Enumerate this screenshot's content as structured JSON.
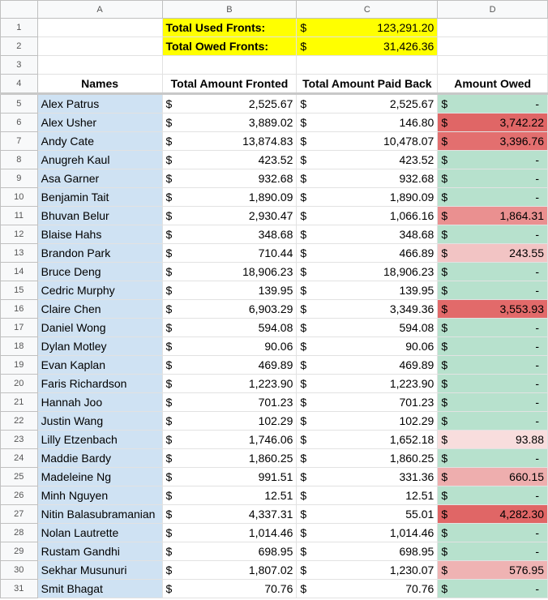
{
  "columns": [
    "A",
    "B",
    "C",
    "D"
  ],
  "summary": [
    {
      "row": "1",
      "label": "Total Used Fronts:",
      "currency": "$",
      "value": "123,291.20"
    },
    {
      "row": "2",
      "label": "Total Owed Fronts:",
      "currency": "$",
      "value": "31,426.36"
    }
  ],
  "blank_row": "3",
  "header_row": {
    "row": "4",
    "names": "Names",
    "fronted": "Total Amount Fronted",
    "paid": "Total Amount Paid Back",
    "owed": "Amount Owed"
  },
  "currency_symbol": "$",
  "colors": {
    "name_bg": "#cfe2f3",
    "owed_zero_bg": "#b7e1cd",
    "highlight_yellow": "#ffff00"
  },
  "rows": [
    {
      "row": "5",
      "name": "Alex Patrus",
      "fronted": "2,525.67",
      "paid": "2,525.67",
      "owed": "-",
      "owed_bg": "#b7e1cd"
    },
    {
      "row": "6",
      "name": "Alex Usher",
      "fronted": "3,889.02",
      "paid": "146.80",
      "owed": "3,742.22",
      "owed_bg": "#e06666"
    },
    {
      "row": "7",
      "name": "Andy Cate",
      "fronted": "13,874.83",
      "paid": "10,478.07",
      "owed": "3,396.76",
      "owed_bg": "#e36f6f"
    },
    {
      "row": "8",
      "name": "Anugreh Kaul",
      "fronted": "423.52",
      "paid": "423.52",
      "owed": "-",
      "owed_bg": "#b7e1cd"
    },
    {
      "row": "9",
      "name": "Asa Garner",
      "fronted": "932.68",
      "paid": "932.68",
      "owed": "-",
      "owed_bg": "#b7e1cd"
    },
    {
      "row": "10",
      "name": "Benjamin Tait",
      "fronted": "1,890.09",
      "paid": "1,890.09",
      "owed": "-",
      "owed_bg": "#b7e1cd"
    },
    {
      "row": "11",
      "name": "Bhuvan Belur",
      "fronted": "2,930.47",
      "paid": "1,066.16",
      "owed": "1,864.31",
      "owed_bg": "#ea9090"
    },
    {
      "row": "12",
      "name": "Blaise Hahs",
      "fronted": "348.68",
      "paid": "348.68",
      "owed": "-",
      "owed_bg": "#b7e1cd"
    },
    {
      "row": "13",
      "name": "Brandon Park",
      "fronted": "710.44",
      "paid": "466.89",
      "owed": "243.55",
      "owed_bg": "#f2c4c4"
    },
    {
      "row": "14",
      "name": "Bruce Deng",
      "fronted": "18,906.23",
      "paid": "18,906.23",
      "owed": "-",
      "owed_bg": "#b7e1cd"
    },
    {
      "row": "15",
      "name": "Cedric Murphy",
      "fronted": "139.95",
      "paid": "139.95",
      "owed": "-",
      "owed_bg": "#b7e1cd"
    },
    {
      "row": "16",
      "name": "Claire Chen",
      "fronted": "6,903.29",
      "paid": "3,349.36",
      "owed": "3,553.93",
      "owed_bg": "#e26a6a"
    },
    {
      "row": "17",
      "name": "Daniel Wong",
      "fronted": "594.08",
      "paid": "594.08",
      "owed": "-",
      "owed_bg": "#b7e1cd"
    },
    {
      "row": "18",
      "name": "Dylan Motley",
      "fronted": "90.06",
      "paid": "90.06",
      "owed": "-",
      "owed_bg": "#b7e1cd"
    },
    {
      "row": "19",
      "name": "Evan Kaplan",
      "fronted": "469.89",
      "paid": "469.89",
      "owed": "-",
      "owed_bg": "#b7e1cd"
    },
    {
      "row": "20",
      "name": "Faris Richardson",
      "fronted": "1,223.90",
      "paid": "1,223.90",
      "owed": "-",
      "owed_bg": "#b7e1cd"
    },
    {
      "row": "21",
      "name": "Hannah Joo",
      "fronted": "701.23",
      "paid": "701.23",
      "owed": "-",
      "owed_bg": "#b7e1cd"
    },
    {
      "row": "22",
      "name": "Justin Wang",
      "fronted": "102.29",
      "paid": "102.29",
      "owed": "-",
      "owed_bg": "#b7e1cd"
    },
    {
      "row": "23",
      "name": "Lilly Etzenbach",
      "fronted": "1,746.06",
      "paid": "1,652.18",
      "owed": "93.88",
      "owed_bg": "#f8dddd"
    },
    {
      "row": "24",
      "name": "Maddie Bardy",
      "fronted": "1,860.25",
      "paid": "1,860.25",
      "owed": "-",
      "owed_bg": "#b7e1cd"
    },
    {
      "row": "25",
      "name": "Madeleine Ng",
      "fronted": "991.51",
      "paid": "331.36",
      "owed": "660.15",
      "owed_bg": "#eeaeae"
    },
    {
      "row": "26",
      "name": "Minh Nguyen",
      "fronted": "12.51",
      "paid": "12.51",
      "owed": "-",
      "owed_bg": "#b7e1cd"
    },
    {
      "row": "27",
      "name": "Nitin Balasubramanian",
      "fronted": "4,337.31",
      "paid": "55.01",
      "owed": "4,282.30",
      "owed_bg": "#e06666"
    },
    {
      "row": "28",
      "name": "Nolan Lautrette",
      "fronted": "1,014.46",
      "paid": "1,014.46",
      "owed": "-",
      "owed_bg": "#b7e1cd"
    },
    {
      "row": "29",
      "name": "Rustam Gandhi",
      "fronted": "698.95",
      "paid": "698.95",
      "owed": "-",
      "owed_bg": "#b7e1cd"
    },
    {
      "row": "30",
      "name": "Sekhar Musunuri",
      "fronted": "1,807.02",
      "paid": "1,230.07",
      "owed": "576.95",
      "owed_bg": "#efb3b3"
    },
    {
      "row": "31",
      "name": "Smit Bhagat",
      "fronted": "70.76",
      "paid": "70.76",
      "owed": "-",
      "owed_bg": "#b7e1cd"
    }
  ]
}
